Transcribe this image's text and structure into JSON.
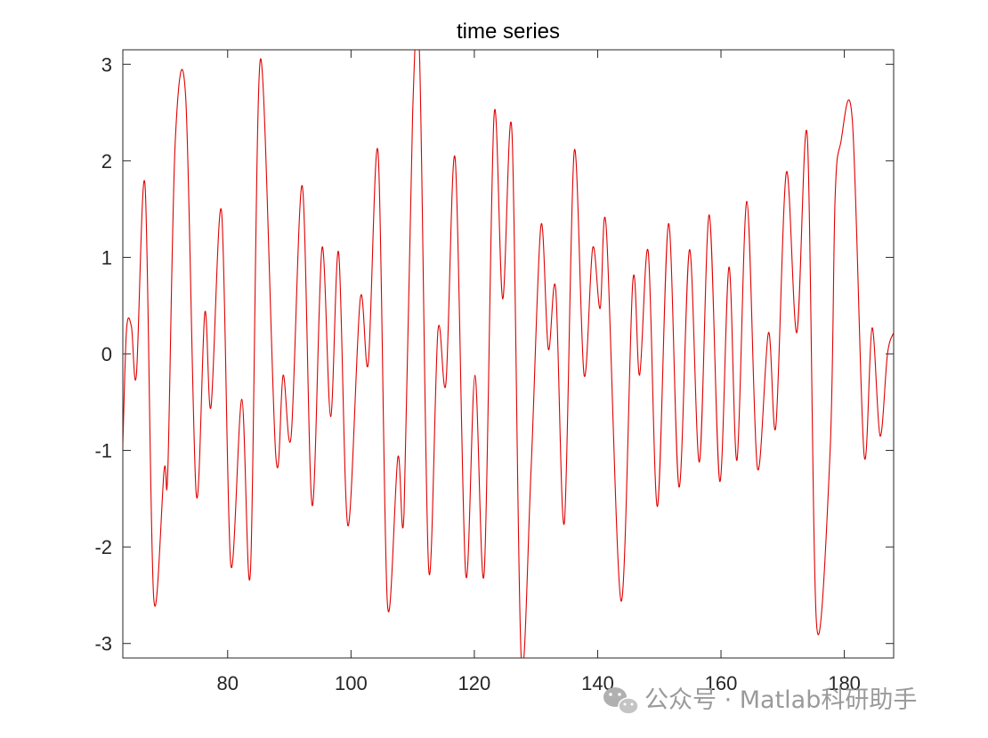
{
  "chart_data": {
    "type": "line",
    "title": "time series",
    "xlabel": "",
    "ylabel": "",
    "xlim": [
      63,
      188
    ],
    "ylim": [
      -3.15,
      3.15
    ],
    "xticks": [
      80,
      100,
      120,
      140,
      160,
      180
    ],
    "yticks": [
      -3,
      -2,
      -1,
      0,
      1,
      2,
      3
    ],
    "grid": false,
    "legend": "none",
    "series": [
      {
        "color": "#e00000",
        "points": [
          [
            63.0,
            -0.95
          ],
          [
            63.6,
            0.25
          ],
          [
            64.4,
            0.28
          ],
          [
            65.2,
            -0.22
          ],
          [
            66.6,
            1.75
          ],
          [
            68.0,
            -2.52
          ],
          [
            69.7,
            -1.2
          ],
          [
            70.3,
            -1.2
          ],
          [
            71.5,
            2.2
          ],
          [
            73.2,
            2.65
          ],
          [
            74.9,
            -1.45
          ],
          [
            76.3,
            0.43
          ],
          [
            77.3,
            -0.55
          ],
          [
            79.0,
            1.48
          ],
          [
            80.5,
            -2.18
          ],
          [
            82.3,
            -0.47
          ],
          [
            83.7,
            -2.25
          ],
          [
            85.3,
            3.05
          ],
          [
            87.8,
            -1.05
          ],
          [
            89.0,
            -0.22
          ],
          [
            90.3,
            -0.85
          ],
          [
            92.1,
            1.74
          ],
          [
            93.7,
            -1.57
          ],
          [
            95.3,
            1.1
          ],
          [
            96.7,
            -0.65
          ],
          [
            98.0,
            1.05
          ],
          [
            99.5,
            -1.78
          ],
          [
            101.5,
            0.57
          ],
          [
            102.8,
            -0.1
          ],
          [
            104.4,
            2.08
          ],
          [
            105.9,
            -2.58
          ],
          [
            107.6,
            -1.07
          ],
          [
            108.6,
            -1.65
          ],
          [
            110.0,
            2.5
          ],
          [
            111.1,
            3.12
          ],
          [
            112.6,
            -2.23
          ],
          [
            114.1,
            0.24
          ],
          [
            115.4,
            -0.3
          ],
          [
            116.9,
            2.02
          ],
          [
            118.6,
            -2.28
          ],
          [
            120.1,
            -0.22
          ],
          [
            121.6,
            -2.27
          ],
          [
            123.2,
            2.47
          ],
          [
            124.6,
            0.57
          ],
          [
            126.1,
            2.3
          ],
          [
            127.6,
            -3.14
          ],
          [
            129.2,
            -1.2
          ],
          [
            130.8,
            1.33
          ],
          [
            132.0,
            0.05
          ],
          [
            133.2,
            0.67
          ],
          [
            134.6,
            -1.75
          ],
          [
            136.2,
            2.1
          ],
          [
            137.8,
            -0.22
          ],
          [
            139.2,
            1.1
          ],
          [
            140.4,
            0.47
          ],
          [
            141.4,
            1.3
          ],
          [
            143.8,
            -2.56
          ],
          [
            145.7,
            0.75
          ],
          [
            146.8,
            -0.22
          ],
          [
            148.2,
            1.06
          ],
          [
            149.7,
            -1.58
          ],
          [
            151.5,
            1.35
          ],
          [
            153.2,
            -1.38
          ],
          [
            154.9,
            1.08
          ],
          [
            156.5,
            -1.12
          ],
          [
            158.1,
            1.44
          ],
          [
            159.8,
            -1.32
          ],
          [
            161.3,
            0.9
          ],
          [
            162.6,
            -1.1
          ],
          [
            164.2,
            1.58
          ],
          [
            165.9,
            -1.18
          ],
          [
            167.7,
            0.22
          ],
          [
            168.9,
            -0.75
          ],
          [
            170.6,
            1.88
          ],
          [
            172.3,
            0.22
          ],
          [
            174.0,
            2.25
          ],
          [
            175.5,
            -2.8
          ],
          [
            177.7,
            -1.0
          ],
          [
            178.5,
            1.6
          ],
          [
            179.4,
            2.18
          ],
          [
            181.3,
            2.42
          ],
          [
            183.2,
            -1.04
          ],
          [
            184.5,
            0.27
          ],
          [
            185.8,
            -0.85
          ],
          [
            187.0,
            0.0
          ],
          [
            188.0,
            0.22
          ]
        ]
      }
    ]
  },
  "watermark": {
    "icon": "wechat-icon",
    "text": "公众号 · Matlab科研助手"
  }
}
